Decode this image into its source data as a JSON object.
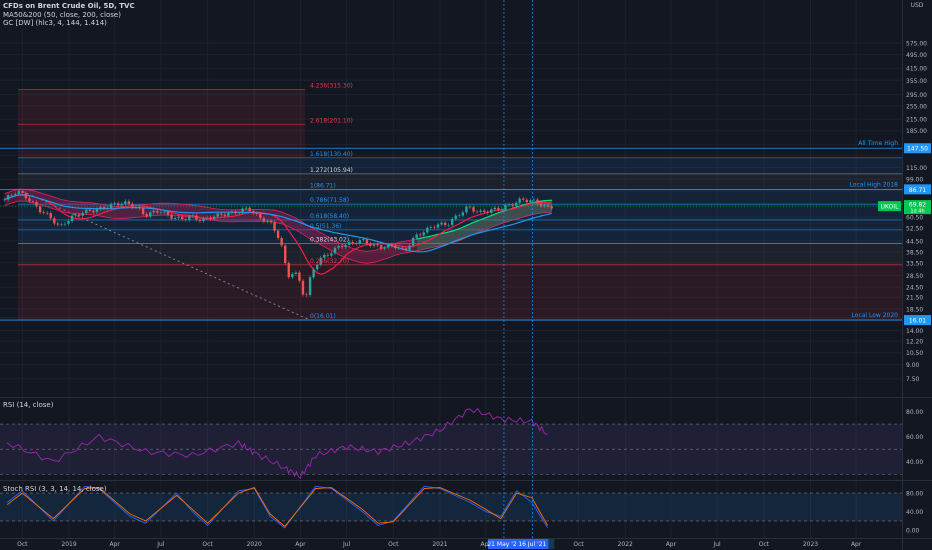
{
  "header": {
    "title": "CFDs on Brent Crude Oil, 5D, TVC",
    "indicator_ma": "MA50&200 (50, close, 200, close)",
    "indicator_gc": "GC [DW] (hlc3, 4, 144, 1.414)",
    "currency": "USD"
  },
  "colors": {
    "bg": "#131722",
    "grid": "#1e222d",
    "up": "#26a69a",
    "down": "#ef5350",
    "fib_red": "#f23645",
    "fib_blue": "#2196f3",
    "fib_gray": "#9598a1",
    "hline": "#2962ff",
    "rsi": "#9c27b0",
    "stoch_k": "#2962ff",
    "stoch_d": "#ff6d00",
    "price_label": "#00c853"
  },
  "chart_data": [
    {
      "type": "candlestick",
      "title": "CFDs on Brent Crude Oil, 5D, TVC",
      "scale": "log",
      "ylim": [
        6,
        680
      ],
      "y_ticks": [
        575.0,
        495.0,
        415.0,
        355.0,
        295.0,
        255.0,
        215.0,
        185.0,
        155.0,
        135.0,
        115.0,
        99.0,
        85.0,
        70.0,
        60.5,
        52.5,
        44.5,
        38.5,
        33.5,
        28.5,
        24.5,
        21.5,
        18.5,
        16.5,
        14.0,
        12.2,
        10.5,
        9.0,
        7.5
      ],
      "y_tick_labels": [
        "575.00",
        "495.00",
        "415.00",
        "355.00",
        "295.00",
        "255.00",
        "215.00",
        "185.00",
        "155.00",
        "135.00",
        "115.00",
        "99.00",
        "85.00",
        "70.00",
        "60.50",
        "52.50",
        "44.50",
        "38.50",
        "33.50",
        "28.50",
        "24.50",
        "21.50",
        "18.50",
        "16.50",
        "14.00",
        "12.20",
        "10.50",
        "9.00",
        "7.50"
      ],
      "x_ticks": [
        "Oct",
        "2019",
        "Apr",
        "Jul",
        "Oct",
        "2020",
        "Apr",
        "Jul",
        "Oct",
        "2021",
        "Apr",
        "Oct",
        "2022",
        "Apr",
        "Jul",
        "Oct",
        "2023",
        "Apr"
      ],
      "x_tick_dates": [
        "2018-10",
        "2019-01",
        "2019-04",
        "2019-07",
        "2019-10",
        "2020-01",
        "2020-04",
        "2020-07",
        "2020-10",
        "2021-01",
        "2021-04",
        "2021-10",
        "2022-01",
        "2022-04",
        "2022-07",
        "2022-10",
        "2023-01",
        "2023-04"
      ],
      "x_range": [
        "2018-09",
        "2023-06"
      ],
      "highlighted_dates": [
        "21 May '21",
        "16 Jul '21"
      ],
      "highlight_date_values": [
        "2021-05-21",
        "2021-07-16"
      ],
      "last_price": {
        "symbol": "UKOIL",
        "value": "69.82",
        "sub": "1d 4h"
      },
      "price_path": [
        [
          "2018-09-10",
          76
        ],
        [
          "2018-10-05",
          85
        ],
        [
          "2018-10-26",
          77
        ],
        [
          "2018-11-16",
          67
        ],
        [
          "2018-12-07",
          61
        ],
        [
          "2018-12-28",
          53
        ],
        [
          "2019-01-18",
          60
        ],
        [
          "2019-02-15",
          65
        ],
        [
          "2019-03-15",
          67
        ],
        [
          "2019-04-12",
          71
        ],
        [
          "2019-05-03",
          73
        ],
        [
          "2019-05-24",
          70
        ],
        [
          "2019-06-14",
          62
        ],
        [
          "2019-07-12",
          66
        ],
        [
          "2019-08-02",
          61
        ],
        [
          "2019-08-23",
          59
        ],
        [
          "2019-09-13",
          61
        ],
        [
          "2019-10-04",
          58
        ],
        [
          "2019-10-25",
          61
        ],
        [
          "2019-11-15",
          63
        ],
        [
          "2019-12-06",
          64
        ],
        [
          "2020-01-03",
          68
        ],
        [
          "2020-01-24",
          60
        ],
        [
          "2020-02-14",
          57
        ],
        [
          "2020-03-06",
          45
        ],
        [
          "2020-03-20",
          28
        ],
        [
          "2020-04-03",
          30
        ],
        [
          "2020-04-17",
          25
        ],
        [
          "2020-04-24",
          20
        ],
        [
          "2020-05-08",
          30
        ],
        [
          "2020-05-22",
          35
        ],
        [
          "2020-06-12",
          38
        ],
        [
          "2020-07-03",
          42
        ],
        [
          "2020-07-24",
          43
        ],
        [
          "2020-08-14",
          45
        ],
        [
          "2020-09-04",
          42
        ],
        [
          "2020-09-25",
          41
        ],
        [
          "2020-10-16",
          42
        ],
        [
          "2020-11-06",
          39
        ],
        [
          "2020-11-27",
          47
        ],
        [
          "2020-12-18",
          51
        ],
        [
          "2021-01-08",
          55
        ],
        [
          "2021-01-29",
          55
        ],
        [
          "2021-02-19",
          62
        ],
        [
          "2021-03-12",
          69
        ],
        [
          "2021-04-02",
          64
        ],
        [
          "2021-04-23",
          66
        ],
        [
          "2021-05-14",
          68
        ],
        [
          "2021-06-04",
          71
        ],
        [
          "2021-06-25",
          76
        ],
        [
          "2021-07-09",
          75
        ],
        [
          "2021-07-23",
          74
        ],
        [
          "2021-08-06",
          70
        ],
        [
          "2021-08-20",
          68
        ],
        [
          "2021-08-27",
          71
        ]
      ],
      "fibonacci": [
        {
          "level": "4.236",
          "price": "315.30",
          "color": "red"
        },
        {
          "level": "2.618",
          "price": "201.10",
          "color": "red"
        },
        {
          "level": "1.618",
          "price": "130.40",
          "color": "blue"
        },
        {
          "level": "1.272",
          "price": "105.94",
          "color": "gray"
        },
        {
          "level": "1",
          "price": "86.71",
          "color": "blue"
        },
        {
          "level": "0.786",
          "price": "71.58",
          "color": "blue"
        },
        {
          "level": "0.618",
          "price": "58.40",
          "color": "blue"
        },
        {
          "level": "0.5",
          "price": "51.36",
          "color": "blue"
        },
        {
          "level": "0.382",
          "price": "43.02",
          "color": "gray"
        },
        {
          "level": "0.236",
          "price": "32.70",
          "color": "red"
        },
        {
          "level": "0",
          "price": "16.01",
          "color": "blue"
        }
      ],
      "horizontal_lines": [
        {
          "label": "All Time High",
          "value": 147.5,
          "tag": "147.50"
        },
        {
          "label": "Local High 2018",
          "value": 86.71,
          "tag": "86.71"
        },
        {
          "label": "Local Low 2020",
          "value": 16.01,
          "tag": "16.01"
        }
      ]
    },
    {
      "type": "line",
      "title": "RSI (14, close)",
      "ylim": [
        27,
        90
      ],
      "y_ticks": [
        80.0,
        60.0,
        40.0
      ],
      "y_tick_labels": [
        "80.00",
        "60.00",
        "40.00"
      ],
      "bands": [
        70,
        50,
        30
      ],
      "x": [
        "2018-09",
        "2018-12",
        "2019-03",
        "2019-06",
        "2019-09",
        "2019-12",
        "2020-01",
        "2020-03",
        "2020-04",
        "2020-05",
        "2020-07",
        "2020-09",
        "2020-11",
        "2021-01",
        "2021-03",
        "2021-05",
        "2021-07",
        "2021-08"
      ],
      "values": [
        55,
        40,
        60,
        48,
        45,
        55,
        47,
        35,
        28,
        45,
        52,
        48,
        55,
        65,
        82,
        74,
        72,
        62
      ]
    },
    {
      "type": "line",
      "title": "Stoch RSI (3, 3, 14, 14, close)",
      "ylim": [
        -4,
        104
      ],
      "y_ticks": [
        80.0,
        40.0,
        0.0
      ],
      "y_tick_labels": [
        "80.00",
        "40.00",
        "0.00"
      ],
      "bands": [
        80,
        20
      ],
      "series": [
        {
          "x": [
            "2018-09",
            "2018-10",
            "2018-12",
            "2019-02",
            "2019-03",
            "2019-05",
            "2019-06",
            "2019-08",
            "2019-09",
            "2019-10",
            "2019-12",
            "2020-01",
            "2020-02",
            "2020-03",
            "2020-05",
            "2020-06",
            "2020-08",
            "2020-09",
            "2020-10",
            "2020-12",
            "2021-01",
            "2021-03",
            "2021-04",
            "2021-05",
            "2021-06",
            "2021-07",
            "2021-08"
          ],
          "values": [
            60,
            85,
            20,
            95,
            90,
            30,
            15,
            80,
            40,
            10,
            85,
            90,
            30,
            5,
            95,
            90,
            40,
            10,
            20,
            95,
            90,
            60,
            40,
            30,
            85,
            60,
            5
          ]
        },
        {
          "x": [
            "2018-09",
            "2018-10",
            "2018-12",
            "2019-02",
            "2019-03",
            "2019-05",
            "2019-06",
            "2019-08",
            "2019-09",
            "2019-10",
            "2019-12",
            "2020-01",
            "2020-02",
            "2020-03",
            "2020-05",
            "2020-06",
            "2020-08",
            "2020-09",
            "2020-10",
            "2020-12",
            "2021-01",
            "2021-03",
            "2021-04",
            "2021-05",
            "2021-06",
            "2021-07",
            "2021-08"
          ],
          "values": [
            55,
            80,
            25,
            90,
            92,
            35,
            20,
            75,
            45,
            15,
            80,
            92,
            35,
            8,
            90,
            92,
            45,
            15,
            18,
            90,
            92,
            65,
            45,
            25,
            80,
            70,
            10
          ]
        }
      ]
    }
  ]
}
